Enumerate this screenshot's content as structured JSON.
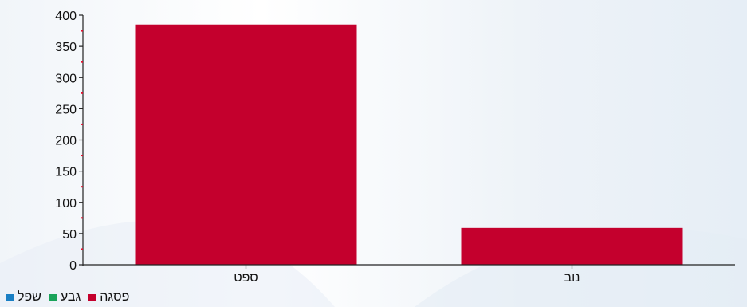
{
  "chart_data": {
    "type": "bar",
    "categories": [
      "ספט",
      "נוב"
    ],
    "series": [
      {
        "name": "פסגה",
        "color": "#c4002d",
        "values": [
          385,
          59
        ]
      },
      {
        "name": "גבע",
        "color": "#1aa35a",
        "values": [
          0,
          0
        ]
      },
      {
        "name": "שפל",
        "color": "#1a7fc4",
        "values": [
          0,
          0
        ]
      }
    ],
    "ylim": [
      0,
      400
    ],
    "yticks": [
      0,
      50,
      100,
      150,
      200,
      250,
      300,
      350,
      400
    ],
    "grid": false,
    "legend_position": "bottom-left",
    "minor_tick_color": "#e0102f"
  }
}
